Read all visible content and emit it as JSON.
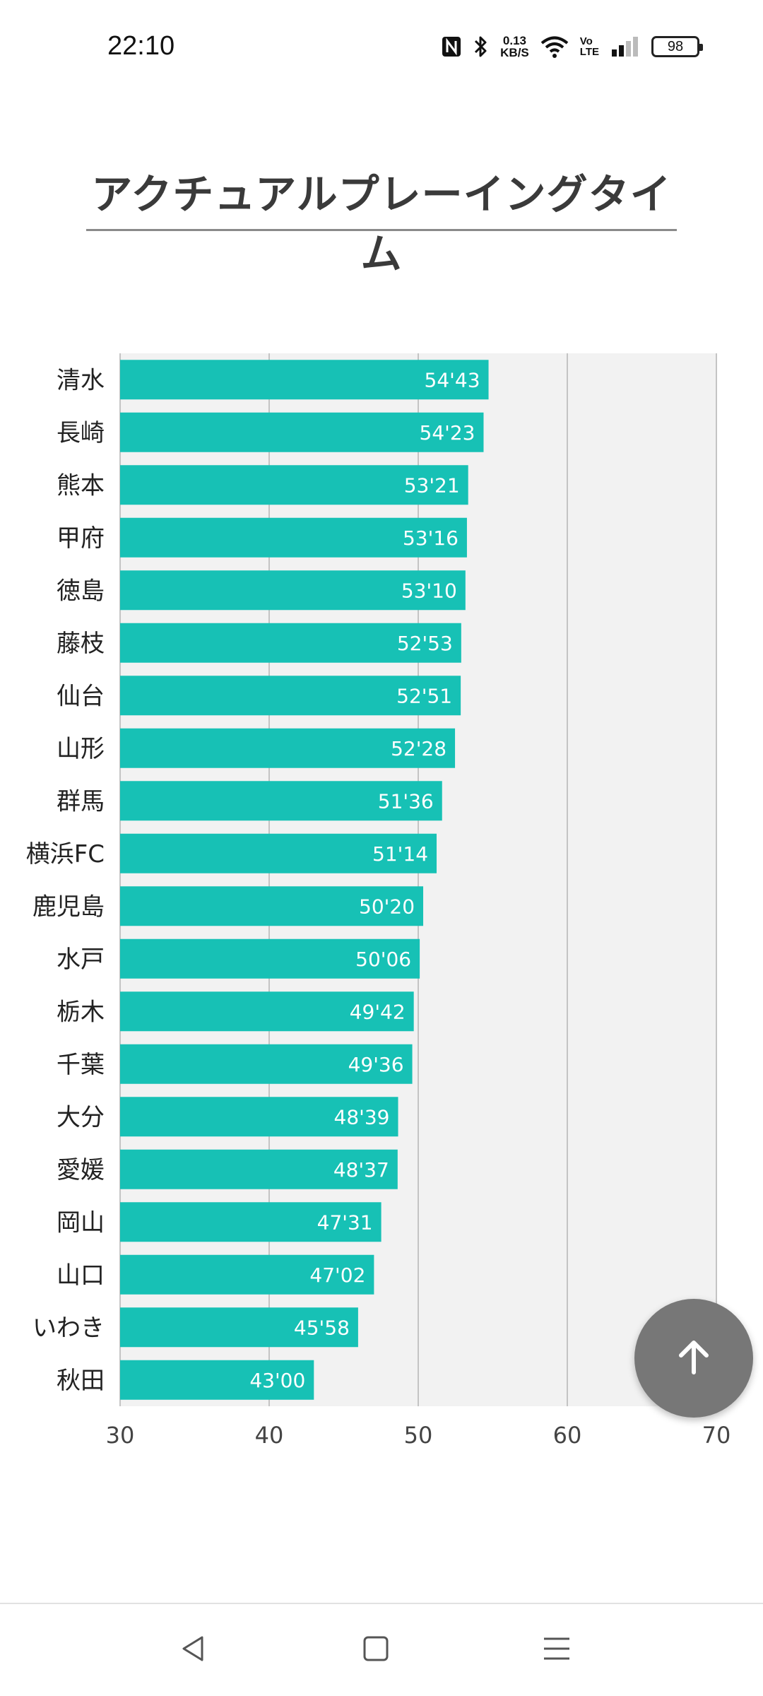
{
  "status_bar": {
    "time": "22:10",
    "net_speed_value": "0.13",
    "net_speed_unit": "KB/S",
    "volte_top": "Vo",
    "volte_bottom": "LTE",
    "battery": "98",
    "icons": [
      "nfc-icon",
      "bluetooth-icon",
      "wifi-icon",
      "signal-icon",
      "battery-icon"
    ]
  },
  "page": {
    "title": "アクチュアルプレーイングタイム"
  },
  "chart_data": {
    "type": "bar",
    "orientation": "horizontal",
    "categories": [
      "清水",
      "長崎",
      "熊本",
      "甲府",
      "徳島",
      "藤枝",
      "仙台",
      "山形",
      "群馬",
      "横浜FC",
      "鹿児島",
      "水戸",
      "栃木",
      "千葉",
      "大分",
      "愛媛",
      "岡山",
      "山口",
      "いわき",
      "秋田"
    ],
    "values": [
      54.717,
      54.383,
      53.35,
      53.267,
      53.167,
      52.883,
      52.85,
      52.467,
      51.6,
      51.233,
      50.333,
      50.1,
      49.7,
      49.6,
      48.65,
      48.617,
      47.517,
      47.033,
      45.967,
      43.0
    ],
    "data_labels": [
      "54'43",
      "54'23",
      "53'21",
      "53'16",
      "53'10",
      "52'53",
      "52'51",
      "52'28",
      "51'36",
      "51'14",
      "50'20",
      "50'06",
      "49'42",
      "49'36",
      "48'39",
      "48'37",
      "47'31",
      "47'02",
      "45'58",
      "43'00"
    ],
    "xlim": [
      30,
      70
    ],
    "xticks": [
      "30",
      "40",
      "50",
      "60",
      "70"
    ],
    "grid": true,
    "bar_color": "#17c1b5",
    "plot_background": "#f2f2f2",
    "title": "",
    "xlabel": "",
    "ylabel": ""
  },
  "fab": {
    "icon": "arrow-up-icon"
  },
  "nav_bar": {
    "icons": [
      "back-triangle-icon",
      "home-square-icon",
      "menu-lines-icon"
    ]
  }
}
